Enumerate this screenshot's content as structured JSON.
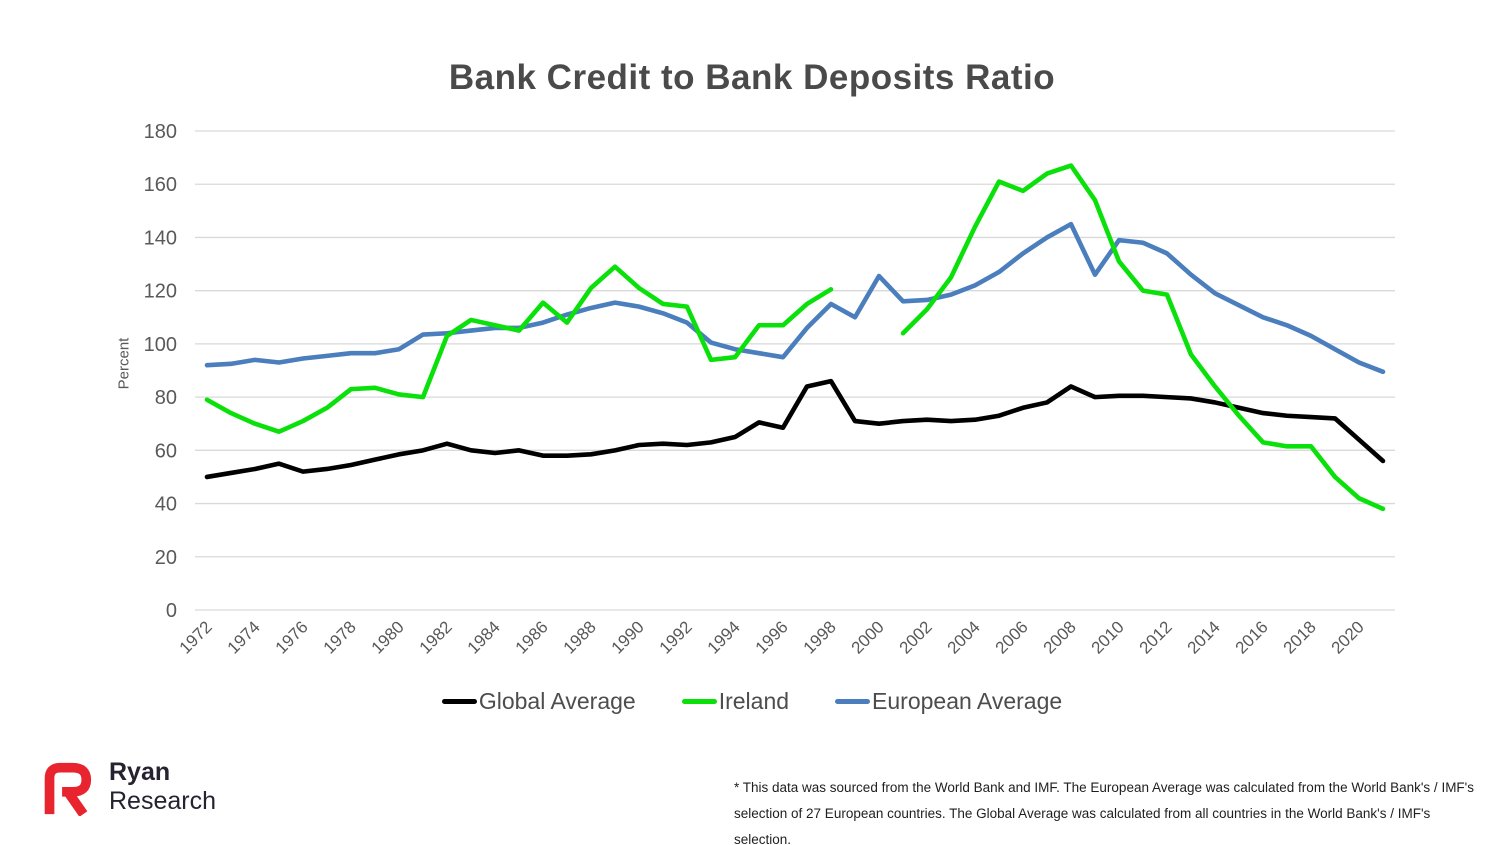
{
  "title": {
    "text": "Bank Credit to Bank Deposits Ratio"
  },
  "chart_data": {
    "type": "line",
    "title": "Bank Credit to Bank Deposits Ratio",
    "xlabel": "",
    "ylabel": "Percent",
    "ylim": [
      0,
      180
    ],
    "yticks": [
      0,
      20,
      40,
      60,
      80,
      100,
      120,
      140,
      160,
      180
    ],
    "xticks": [
      1972,
      1974,
      1976,
      1978,
      1980,
      1982,
      1984,
      1986,
      1988,
      1990,
      1992,
      1994,
      1996,
      1998,
      2000,
      2002,
      2004,
      2006,
      2008,
      2010,
      2012,
      2014,
      2016,
      2018,
      2020
    ],
    "grid": "horizontal-only",
    "gridline_color": "#d9d9d9",
    "axis_label_color": "#595959",
    "legend_position": "bottom",
    "x": [
      1972,
      1973,
      1974,
      1975,
      1976,
      1977,
      1978,
      1979,
      1980,
      1981,
      1982,
      1983,
      1984,
      1985,
      1986,
      1987,
      1988,
      1989,
      1990,
      1991,
      1992,
      1993,
      1994,
      1995,
      1996,
      1997,
      1998,
      1999,
      2000,
      2001,
      2002,
      2003,
      2004,
      2005,
      2006,
      2007,
      2008,
      2009,
      2010,
      2011,
      2012,
      2013,
      2014,
      2015,
      2016,
      2017,
      2018,
      2019,
      2020,
      2021
    ],
    "series": [
      {
        "name": "Global Average",
        "color": "#000000",
        "values": [
          50,
          51.5,
          53,
          55,
          52,
          53,
          54.5,
          56.5,
          58.5,
          60,
          62.5,
          60,
          59,
          60,
          58,
          58,
          58.5,
          60,
          62,
          62.5,
          62,
          63,
          65,
          70.5,
          68.5,
          84,
          86,
          71,
          70,
          71,
          71.5,
          71,
          71.5,
          73,
          76,
          78,
          84,
          80,
          80.5,
          80.5,
          80,
          79.5,
          78,
          76,
          74,
          73,
          72.5,
          72,
          64,
          56
        ]
      },
      {
        "name": "Ireland",
        "color": "#0ae00a",
        "values": [
          79,
          74,
          70,
          67,
          71,
          76,
          83,
          83.5,
          81,
          80,
          103,
          109,
          107,
          105,
          115.5,
          108,
          121,
          129,
          121,
          115,
          114,
          94,
          95,
          107,
          107,
          115,
          120.5,
          null,
          null,
          104,
          113,
          125,
          144,
          161,
          157.5,
          164,
          167,
          154,
          131,
          120,
          118.5,
          96,
          84,
          73,
          63,
          61.5,
          61.5,
          50,
          42,
          38
        ]
      },
      {
        "name": "European Average",
        "color": "#4a7ebd",
        "values": [
          92,
          92.5,
          94,
          93,
          94.5,
          95.5,
          96.5,
          96.5,
          98,
          103.5,
          104,
          105,
          106,
          106,
          108,
          111,
          113.5,
          115.5,
          114,
          111.5,
          108,
          100.5,
          98,
          96.5,
          95,
          106,
          115,
          110,
          125.5,
          116,
          116.5,
          118.5,
          122,
          127,
          134,
          140,
          145,
          126,
          139,
          138,
          134,
          126,
          119,
          114.5,
          110,
          107,
          103,
          98,
          93,
          89.5
        ]
      }
    ]
  },
  "footer": {
    "logo": {
      "word1": "Ryan",
      "word2": "Research",
      "accent_color": "#e8242f"
    },
    "note_line1": "* This data was sourced from the World Bank and IMF. The European Average was calculated from the World Bank's / IMF's",
    "note_line2": "selection of 27 European countries. The Global Average was calculated from all countries in the World Bank's / IMF's selection."
  }
}
